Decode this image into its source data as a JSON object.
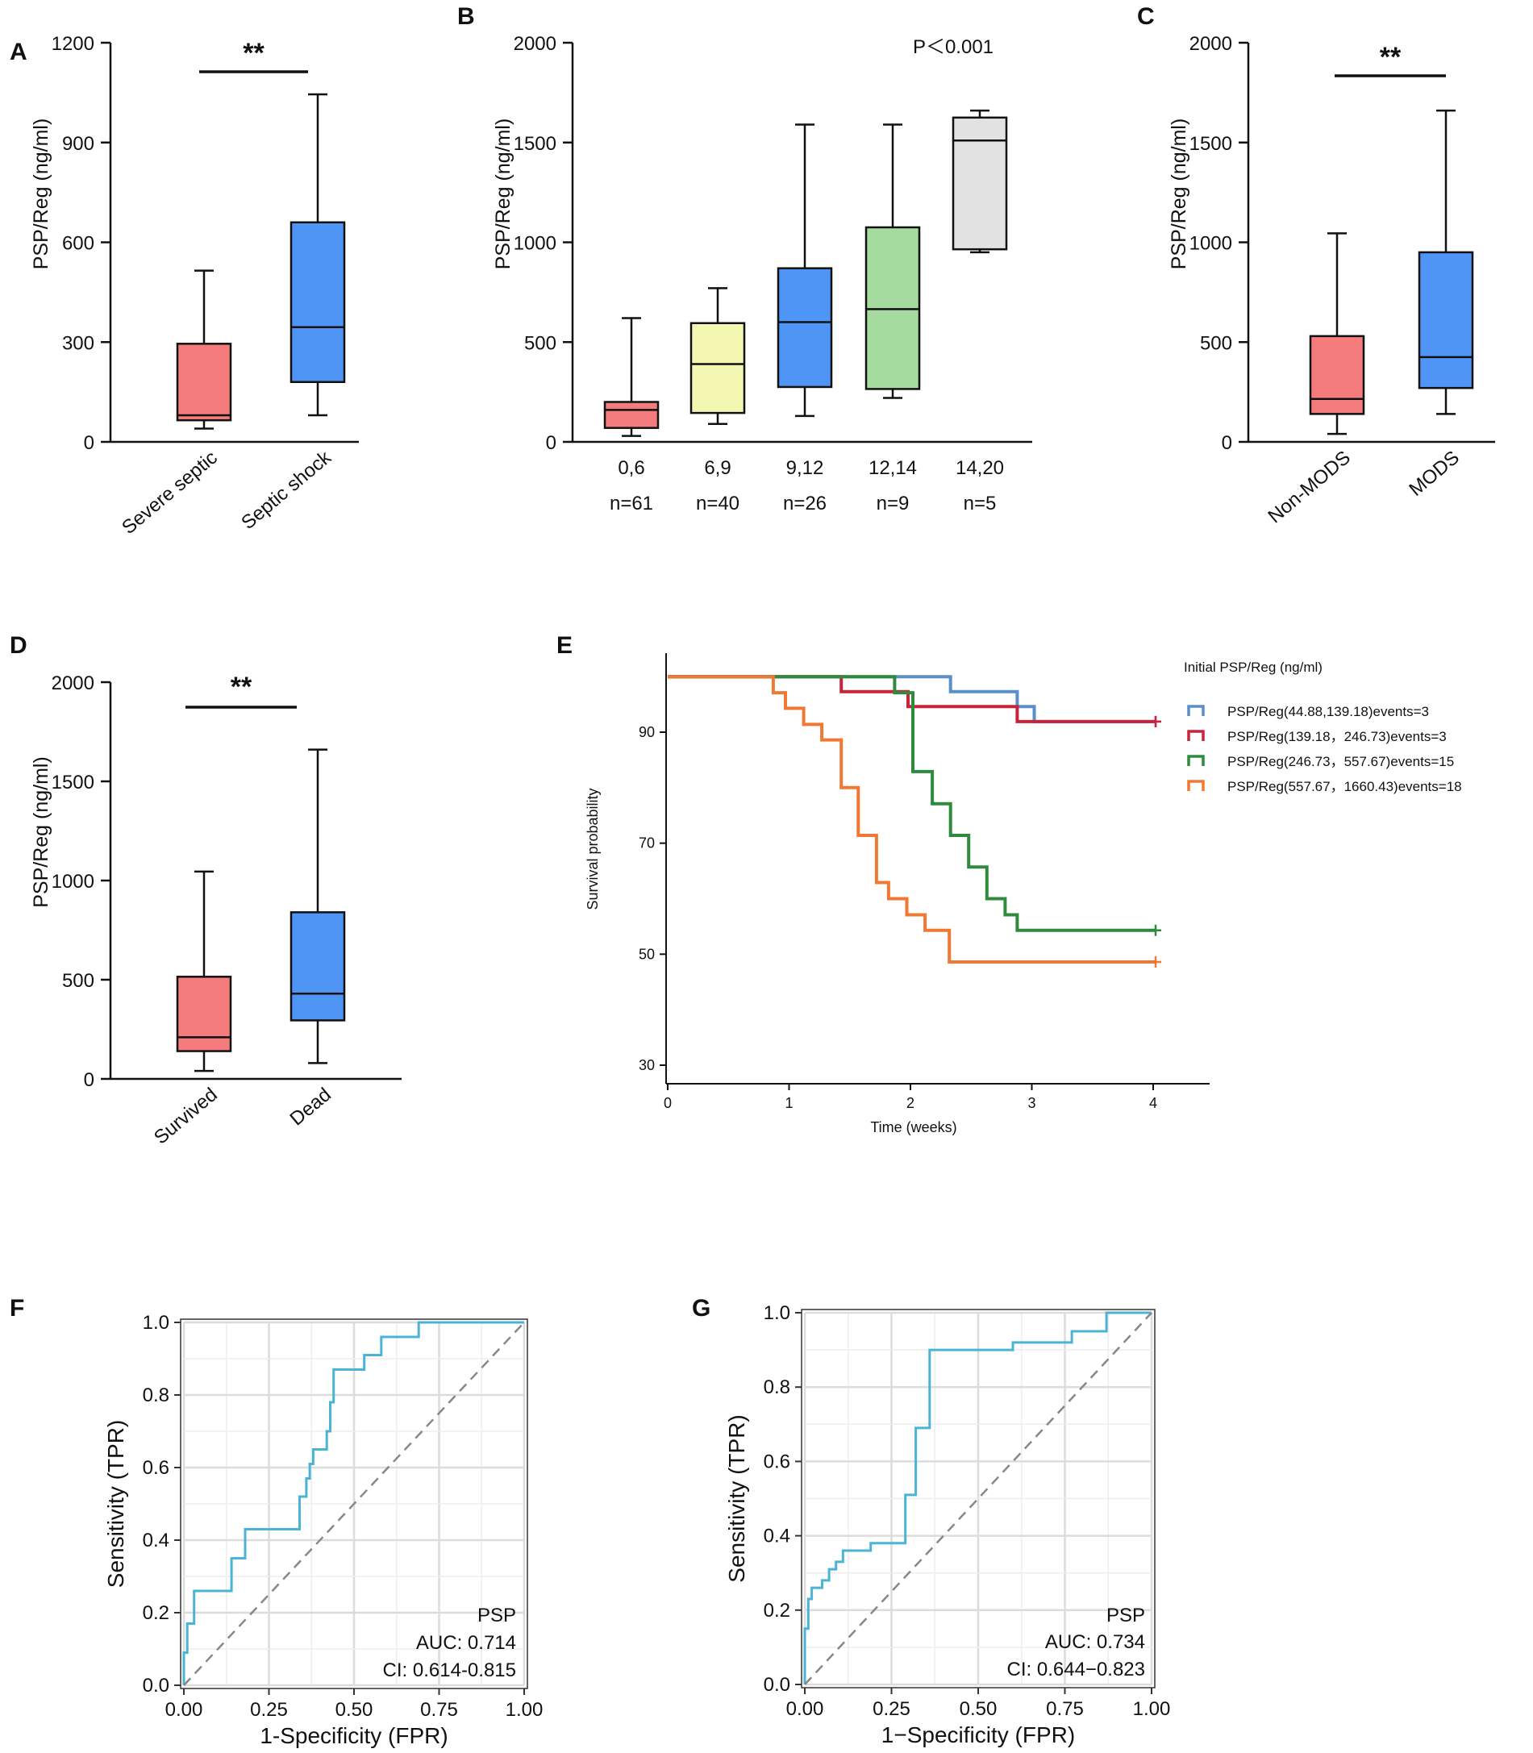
{
  "chart_data": [
    {
      "panel": "A",
      "type": "box",
      "ylabel": "PSP/Reg (ng/ml)",
      "ylim": [
        0,
        1200
      ],
      "yticks": [
        0,
        300,
        600,
        900,
        1200
      ],
      "yticklabels": [
        "0",
        "300",
        "600",
        "900",
        "1200"
      ],
      "categories": [
        "Severe septic",
        "Septic shock"
      ],
      "boxes": [
        {
          "min": 40,
          "q1": 65,
          "median": 80,
          "q3": 295,
          "max": 515,
          "color": "#f47c7c"
        },
        {
          "min": 80,
          "q1": 180,
          "median": 345,
          "q3": 660,
          "max": 1045,
          "color": "#4f95f5"
        }
      ],
      "significance": "**"
    },
    {
      "panel": "B",
      "type": "box",
      "ylabel": "PSP/Reg (ng/ml)",
      "ylim": [
        0,
        2000
      ],
      "yticks": [
        0,
        500,
        1000,
        1500,
        2000
      ],
      "yticklabels": [
        "0",
        "500",
        "1000",
        "1500",
        "2000"
      ],
      "categories": [
        "0,6",
        "6,9",
        "9,12",
        "12,14",
        "14,20"
      ],
      "counts": [
        "n=61",
        "n=40",
        "n=26",
        "n=9",
        "n=5"
      ],
      "boxes": [
        {
          "min": 30,
          "q1": 70,
          "median": 160,
          "q3": 200,
          "max": 620,
          "color": "#f47c7c"
        },
        {
          "min": 90,
          "q1": 145,
          "median": 390,
          "q3": 595,
          "max": 770,
          "color": "#f4f7b2"
        },
        {
          "min": 130,
          "q1": 275,
          "median": 600,
          "q3": 870,
          "max": 1590,
          "color": "#4f95f5"
        },
        {
          "min": 220,
          "q1": 265,
          "median": 665,
          "q3": 1075,
          "max": 1590,
          "color": "#a6dba0"
        },
        {
          "min": 950,
          "q1": 965,
          "median": 1510,
          "q3": 1625,
          "max": 1660,
          "color": "#e2e2e2"
        }
      ],
      "annotation": "P＜0.001"
    },
    {
      "panel": "C",
      "type": "box",
      "ylabel": "PSP/Reg (ng/ml)",
      "ylim": [
        0,
        2000
      ],
      "yticks": [
        0,
        500,
        1000,
        1500,
        2000
      ],
      "yticklabels": [
        "0",
        "500",
        "1000",
        "1500",
        "2000"
      ],
      "categories": [
        "Non-MODS",
        "MODS"
      ],
      "boxes": [
        {
          "min": 40,
          "q1": 140,
          "median": 215,
          "q3": 530,
          "max": 1045,
          "color": "#f47c7c"
        },
        {
          "min": 140,
          "q1": 270,
          "median": 425,
          "q3": 950,
          "max": 1660,
          "color": "#4f95f5"
        }
      ],
      "significance": "**"
    },
    {
      "panel": "D",
      "type": "box",
      "ylabel": "PSP/Reg (ng/ml)",
      "ylim": [
        0,
        2000
      ],
      "yticks": [
        0,
        500,
        1000,
        1500,
        2000
      ],
      "yticklabels": [
        "0",
        "500",
        "1000",
        "1500",
        "2000"
      ],
      "categories": [
        "Survived",
        "Dead"
      ],
      "boxes": [
        {
          "min": 40,
          "q1": 140,
          "median": 210,
          "q3": 515,
          "max": 1045,
          "color": "#f47c7c"
        },
        {
          "min": 80,
          "q1": 295,
          "median": 430,
          "q3": 840,
          "max": 1660,
          "color": "#4f95f5"
        }
      ],
      "significance": "**"
    },
    {
      "panel": "E",
      "type": "line",
      "subtype": "kaplan-meier step",
      "xlabel": "Time (weeks)",
      "ylabel": "Survival probability",
      "xlim": [
        0,
        4.5
      ],
      "ylim": [
        28,
        104
      ],
      "xticks": [
        0,
        1,
        2,
        3,
        4
      ],
      "xticklabels": [
        "0",
        "1",
        "2",
        "3",
        "4"
      ],
      "yticks": [
        30,
        50,
        70,
        90
      ],
      "yticklabels": [
        "30",
        "50",
        "70",
        "90"
      ],
      "legend_title": "Initial PSP/Reg (ng/ml)",
      "series": [
        {
          "name": "PSP/Reg(44.88,139.18)events=3",
          "color": "#5b8fc9",
          "points": [
            [
              0,
              100
            ],
            [
              1.98,
              100
            ],
            [
              1.98,
              100
            ],
            [
              2.33,
              100
            ],
            [
              2.33,
              97.3
            ],
            [
              2.88,
              97.3
            ],
            [
              2.88,
              94.6
            ],
            [
              3.02,
              94.6
            ],
            [
              3.02,
              91.9
            ],
            [
              4.02,
              91.9
            ]
          ]
        },
        {
          "name": "PSP/Reg(139.18，246.73)events=3",
          "color": "#c8233a",
          "points": [
            [
              0,
              100
            ],
            [
              1.43,
              100
            ],
            [
              1.43,
              97.3
            ],
            [
              1.98,
              97.3
            ],
            [
              1.98,
              94.6
            ],
            [
              2.88,
              94.6
            ],
            [
              2.88,
              91.9
            ],
            [
              4.02,
              91.9
            ]
          ]
        },
        {
          "name": "PSP/Reg(246.73，557.67)events=15",
          "color": "#2f8a3c",
          "points": [
            [
              0,
              100
            ],
            [
              1.87,
              100
            ],
            [
              1.87,
              97.1
            ],
            [
              2.02,
              97.1
            ],
            [
              2.02,
              82.9
            ],
            [
              2.18,
              82.9
            ],
            [
              2.18,
              77.1
            ],
            [
              2.33,
              77.1
            ],
            [
              2.33,
              71.4
            ],
            [
              2.48,
              71.4
            ],
            [
              2.48,
              65.7
            ],
            [
              2.63,
              65.7
            ],
            [
              2.63,
              60.0
            ],
            [
              2.78,
              60.0
            ],
            [
              2.78,
              57.1
            ],
            [
              2.88,
              57.1
            ],
            [
              2.88,
              54.3
            ],
            [
              4.02,
              54.3
            ]
          ]
        },
        {
          "name": "PSP/Reg(557.67，1660.43)events=18",
          "color": "#f07832",
          "points": [
            [
              0,
              100
            ],
            [
              0.87,
              100
            ],
            [
              0.87,
              97.1
            ],
            [
              0.97,
              97.1
            ],
            [
              0.97,
              94.3
            ],
            [
              1.12,
              94.3
            ],
            [
              1.12,
              91.4
            ],
            [
              1.27,
              91.4
            ],
            [
              1.27,
              88.6
            ],
            [
              1.43,
              88.6
            ],
            [
              1.43,
              80.0
            ],
            [
              1.57,
              80.0
            ],
            [
              1.57,
              71.4
            ],
            [
              1.72,
              71.4
            ],
            [
              1.72,
              62.9
            ],
            [
              1.82,
              62.9
            ],
            [
              1.82,
              60.0
            ],
            [
              1.97,
              60.0
            ],
            [
              1.97,
              57.1
            ],
            [
              2.12,
              57.1
            ],
            [
              2.12,
              54.3
            ],
            [
              2.32,
              54.3
            ],
            [
              2.32,
              48.6
            ],
            [
              4.02,
              48.6
            ]
          ]
        }
      ]
    },
    {
      "panel": "F",
      "type": "line",
      "subtype": "roc",
      "xlabel": "1-Specificity (FPR)",
      "ylabel": "Sensitivity (TPR)",
      "xlim": [
        0,
        1
      ],
      "ylim": [
        0,
        1
      ],
      "xticks": [
        0,
        0.25,
        0.5,
        0.75,
        1
      ],
      "xticklabels": [
        "0.00",
        "0.25",
        "0.50",
        "0.75",
        "1.00"
      ],
      "yticks": [
        0,
        0.2,
        0.4,
        0.6,
        0.8,
        1
      ],
      "yticklabels": [
        "0.0",
        "0.2",
        "0.4",
        "0.6",
        "0.8",
        "1.0"
      ],
      "series": [
        {
          "name": "PSP",
          "color": "#4ab3d6",
          "points": [
            [
              0,
              0
            ],
            [
              0,
              0.09
            ],
            [
              0.01,
              0.09
            ],
            [
              0.01,
              0.17
            ],
            [
              0.03,
              0.17
            ],
            [
              0.03,
              0.26
            ],
            [
              0.14,
              0.26
            ],
            [
              0.14,
              0.35
            ],
            [
              0.18,
              0.35
            ],
            [
              0.18,
              0.43
            ],
            [
              0.34,
              0.43
            ],
            [
              0.34,
              0.52
            ],
            [
              0.36,
              0.52
            ],
            [
              0.36,
              0.57
            ],
            [
              0.37,
              0.57
            ],
            [
              0.37,
              0.61
            ],
            [
              0.38,
              0.61
            ],
            [
              0.38,
              0.65
            ],
            [
              0.42,
              0.65
            ],
            [
              0.42,
              0.7
            ],
            [
              0.43,
              0.7
            ],
            [
              0.43,
              0.78
            ],
            [
              0.44,
              0.78
            ],
            [
              0.44,
              0.87
            ],
            [
              0.53,
              0.87
            ],
            [
              0.53,
              0.91
            ],
            [
              0.58,
              0.91
            ],
            [
              0.58,
              0.96
            ],
            [
              0.69,
              0.96
            ],
            [
              0.69,
              1.0
            ],
            [
              1.0,
              1.0
            ]
          ]
        },
        {
          "name": "diagonal",
          "color": "#888888",
          "points": [
            [
              0,
              0
            ],
            [
              1,
              1
            ]
          ]
        }
      ],
      "annotations": [
        "PSP",
        "AUC: 0.714",
        "CI: 0.614-0.815"
      ]
    },
    {
      "panel": "G",
      "type": "line",
      "subtype": "roc",
      "xlabel": "1−Specificity (FPR)",
      "ylabel": "Sensitivity (TPR)",
      "xlim": [
        0,
        1
      ],
      "ylim": [
        0,
        1
      ],
      "xticks": [
        0,
        0.25,
        0.5,
        0.75,
        1
      ],
      "xticklabels": [
        "0.00",
        "0.25",
        "0.50",
        "0.75",
        "1.00"
      ],
      "yticks": [
        0,
        0.2,
        0.4,
        0.6,
        0.8,
        1
      ],
      "yticklabels": [
        "0.0",
        "0.2",
        "0.4",
        "0.6",
        "0.8",
        "1.0"
      ],
      "series": [
        {
          "name": "PSP",
          "color": "#4ab3d6",
          "points": [
            [
              0,
              0
            ],
            [
              0,
              0.15
            ],
            [
              0.01,
              0.15
            ],
            [
              0.01,
              0.23
            ],
            [
              0.02,
              0.23
            ],
            [
              0.02,
              0.26
            ],
            [
              0.05,
              0.26
            ],
            [
              0.05,
              0.28
            ],
            [
              0.07,
              0.28
            ],
            [
              0.07,
              0.31
            ],
            [
              0.09,
              0.31
            ],
            [
              0.09,
              0.33
            ],
            [
              0.11,
              0.33
            ],
            [
              0.11,
              0.36
            ],
            [
              0.19,
              0.36
            ],
            [
              0.19,
              0.38
            ],
            [
              0.29,
              0.38
            ],
            [
              0.29,
              0.51
            ],
            [
              0.32,
              0.51
            ],
            [
              0.32,
              0.69
            ],
            [
              0.36,
              0.69
            ],
            [
              0.36,
              0.9
            ],
            [
              0.6,
              0.9
            ],
            [
              0.6,
              0.92
            ],
            [
              0.77,
              0.92
            ],
            [
              0.77,
              0.95
            ],
            [
              0.87,
              0.95
            ],
            [
              0.87,
              1.0
            ],
            [
              1.0,
              1.0
            ]
          ]
        },
        {
          "name": "diagonal",
          "color": "#888888",
          "points": [
            [
              0,
              0
            ],
            [
              1,
              1
            ]
          ]
        }
      ],
      "annotations": [
        "PSP",
        "AUC: 0.734",
        "CI: 0.644−0.823"
      ]
    }
  ]
}
